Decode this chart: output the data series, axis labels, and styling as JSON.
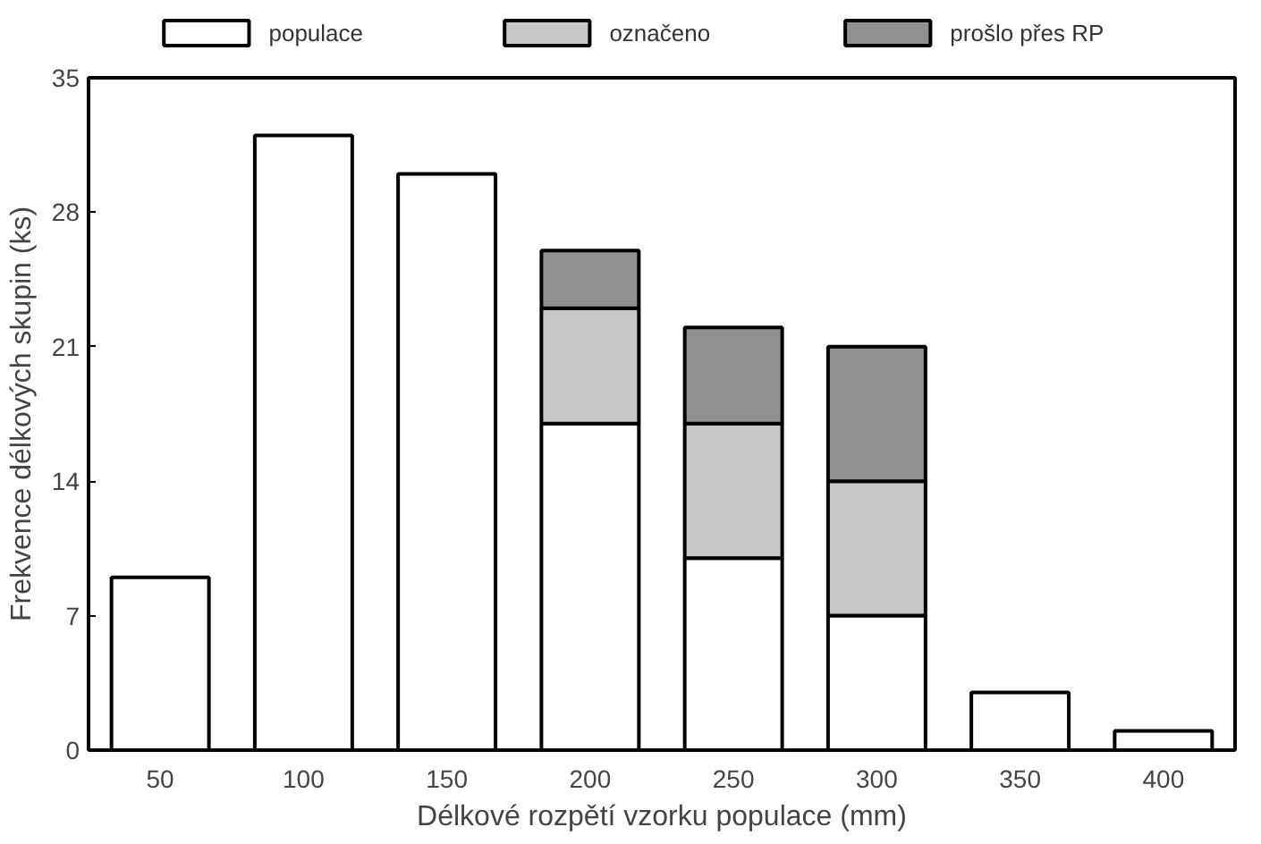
{
  "chart_data": {
    "type": "bar",
    "stacked": true,
    "xlabel": "Délkové rozpětí vzorku populace (mm)",
    "ylabel": "Frekvence délkových skupin (ks)",
    "categories": [
      "50",
      "100",
      "150",
      "200",
      "250",
      "300",
      "350",
      "400"
    ],
    "series": [
      {
        "name": "populace",
        "color": "#ffffff",
        "values": [
          9,
          32,
          30,
          17,
          10,
          7,
          3,
          1
        ]
      },
      {
        "name": "označeno",
        "color": "#c8c8c8",
        "values": [
          null,
          null,
          null,
          6,
          7,
          7,
          null,
          null
        ]
      },
      {
        "name": "prošlo přes RP",
        "color": "#909090",
        "values": [
          null,
          null,
          null,
          3,
          5,
          7,
          null,
          null
        ]
      }
    ],
    "ylim": [
      0,
      35
    ],
    "yticks": [
      0,
      7,
      14,
      21,
      28,
      35
    ],
    "grid": false,
    "legend": "top"
  }
}
